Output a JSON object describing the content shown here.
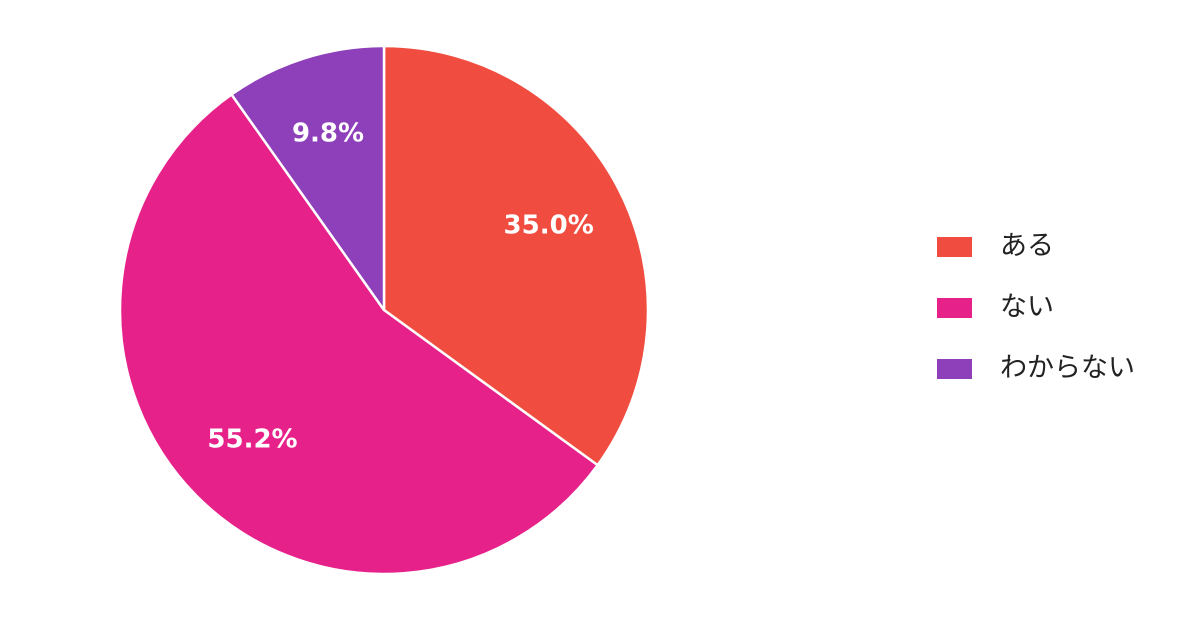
{
  "chart_data": {
    "type": "pie",
    "categories": [
      "ある",
      "ない",
      "わからない"
    ],
    "values": [
      35.0,
      55.2,
      9.8
    ],
    "value_labels": [
      "35.0%",
      "55.2%",
      "9.8%"
    ],
    "colors": [
      "#f04d40",
      "#e6228a",
      "#8e3fba"
    ],
    "legend": "right"
  }
}
